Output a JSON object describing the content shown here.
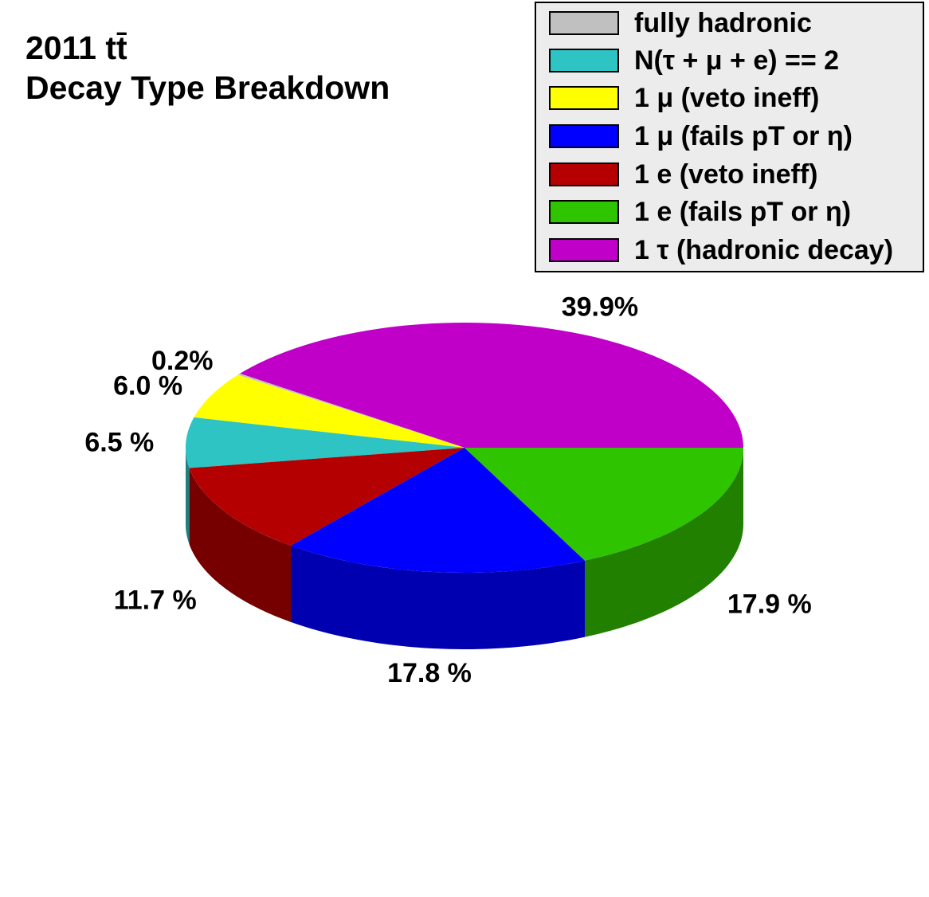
{
  "title": {
    "line1": "2011 tt̄",
    "line2": "Decay Type Breakdown"
  },
  "legend": {
    "position": "top-right",
    "entries": [
      {
        "label": "fully hadronic",
        "color": "#c0c0c0"
      },
      {
        "label": "N(τ + μ + e) == 2",
        "color": "#2ec4c4"
      },
      {
        "label": "1 μ (veto ineff)",
        "color": "#ffff00"
      },
      {
        "label": "1 μ (fails pT or η)",
        "color": "#0000ff"
      },
      {
        "label": "1 e (veto ineff)",
        "color": "#b40000"
      },
      {
        "label": "1 e (fails pT or η)",
        "color": "#2ec400"
      },
      {
        "label": "1 τ (hadronic decay)",
        "color": "#c000c8"
      }
    ]
  },
  "chart_data": {
    "type": "pie",
    "style": "3d",
    "slices": [
      {
        "name": "1 τ (hadronic decay)",
        "value": 39.9,
        "label": "39.9%",
        "color": "#c000c8",
        "side_color": "#8a0090"
      },
      {
        "name": "fully hadronic",
        "value": 0.2,
        "label": "0.2%",
        "color": "#c0c0c0",
        "side_color": "#8a8a8a"
      },
      {
        "name": "1 μ (veto ineff)",
        "value": 6.0,
        "label": "6.0 %",
        "color": "#ffff00",
        "side_color": "#b8b800"
      },
      {
        "name": "N(τ + μ + e) == 2",
        "value": 6.5,
        "label": "6.5 %",
        "color": "#2ec4c4",
        "side_color": "#1f8080"
      },
      {
        "name": "1 e (veto ineff)",
        "value": 11.7,
        "label": "11.7 %",
        "color": "#b40000",
        "side_color": "#760000"
      },
      {
        "name": "1 μ (fails pT or η)",
        "value": 17.8,
        "label": "17.8 %",
        "color": "#0000ff",
        "side_color": "#0000b0"
      },
      {
        "name": "1 e (fails pT or η)",
        "value": 17.9,
        "label": "17.9 %",
        "color": "#2ec400",
        "side_color": "#218000"
      }
    ]
  }
}
